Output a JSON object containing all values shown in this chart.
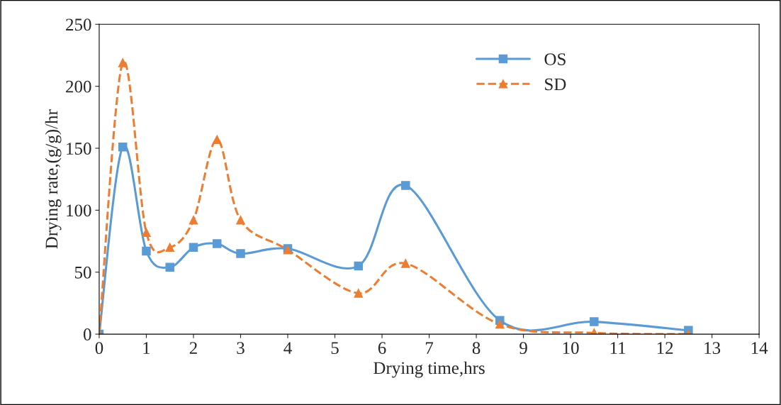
{
  "chart_data": {
    "type": "line",
    "xlabel": "Drying time,hrs",
    "ylabel": "Drying rate,(g/g)/hr",
    "x": [
      0,
      0.5,
      1,
      1.5,
      2,
      2.5,
      3,
      4,
      5.5,
      6.5,
      8.5,
      10.5,
      12.5
    ],
    "series": [
      {
        "name": "OS",
        "color": "#5b9bd5",
        "marker": "square",
        "line_style": "solid",
        "values": [
          0,
          151,
          67,
          54,
          70,
          73,
          65,
          69,
          55,
          120,
          11,
          10,
          3
        ]
      },
      {
        "name": "SD",
        "color": "#ed7d31",
        "marker": "triangle",
        "line_style": "dashed",
        "values": [
          0,
          219,
          82,
          70,
          92,
          157,
          92,
          68,
          33,
          57,
          8,
          1,
          0
        ]
      }
    ],
    "xlim": [
      0,
      14
    ],
    "xticks": [
      0,
      1,
      2,
      3,
      4,
      5,
      6,
      7,
      8,
      9,
      10,
      11,
      12,
      13,
      14
    ],
    "ylim": [
      0,
      250
    ],
    "yticks": [
      0,
      50,
      100,
      150,
      200,
      250
    ],
    "grid": false,
    "legend": "top"
  }
}
